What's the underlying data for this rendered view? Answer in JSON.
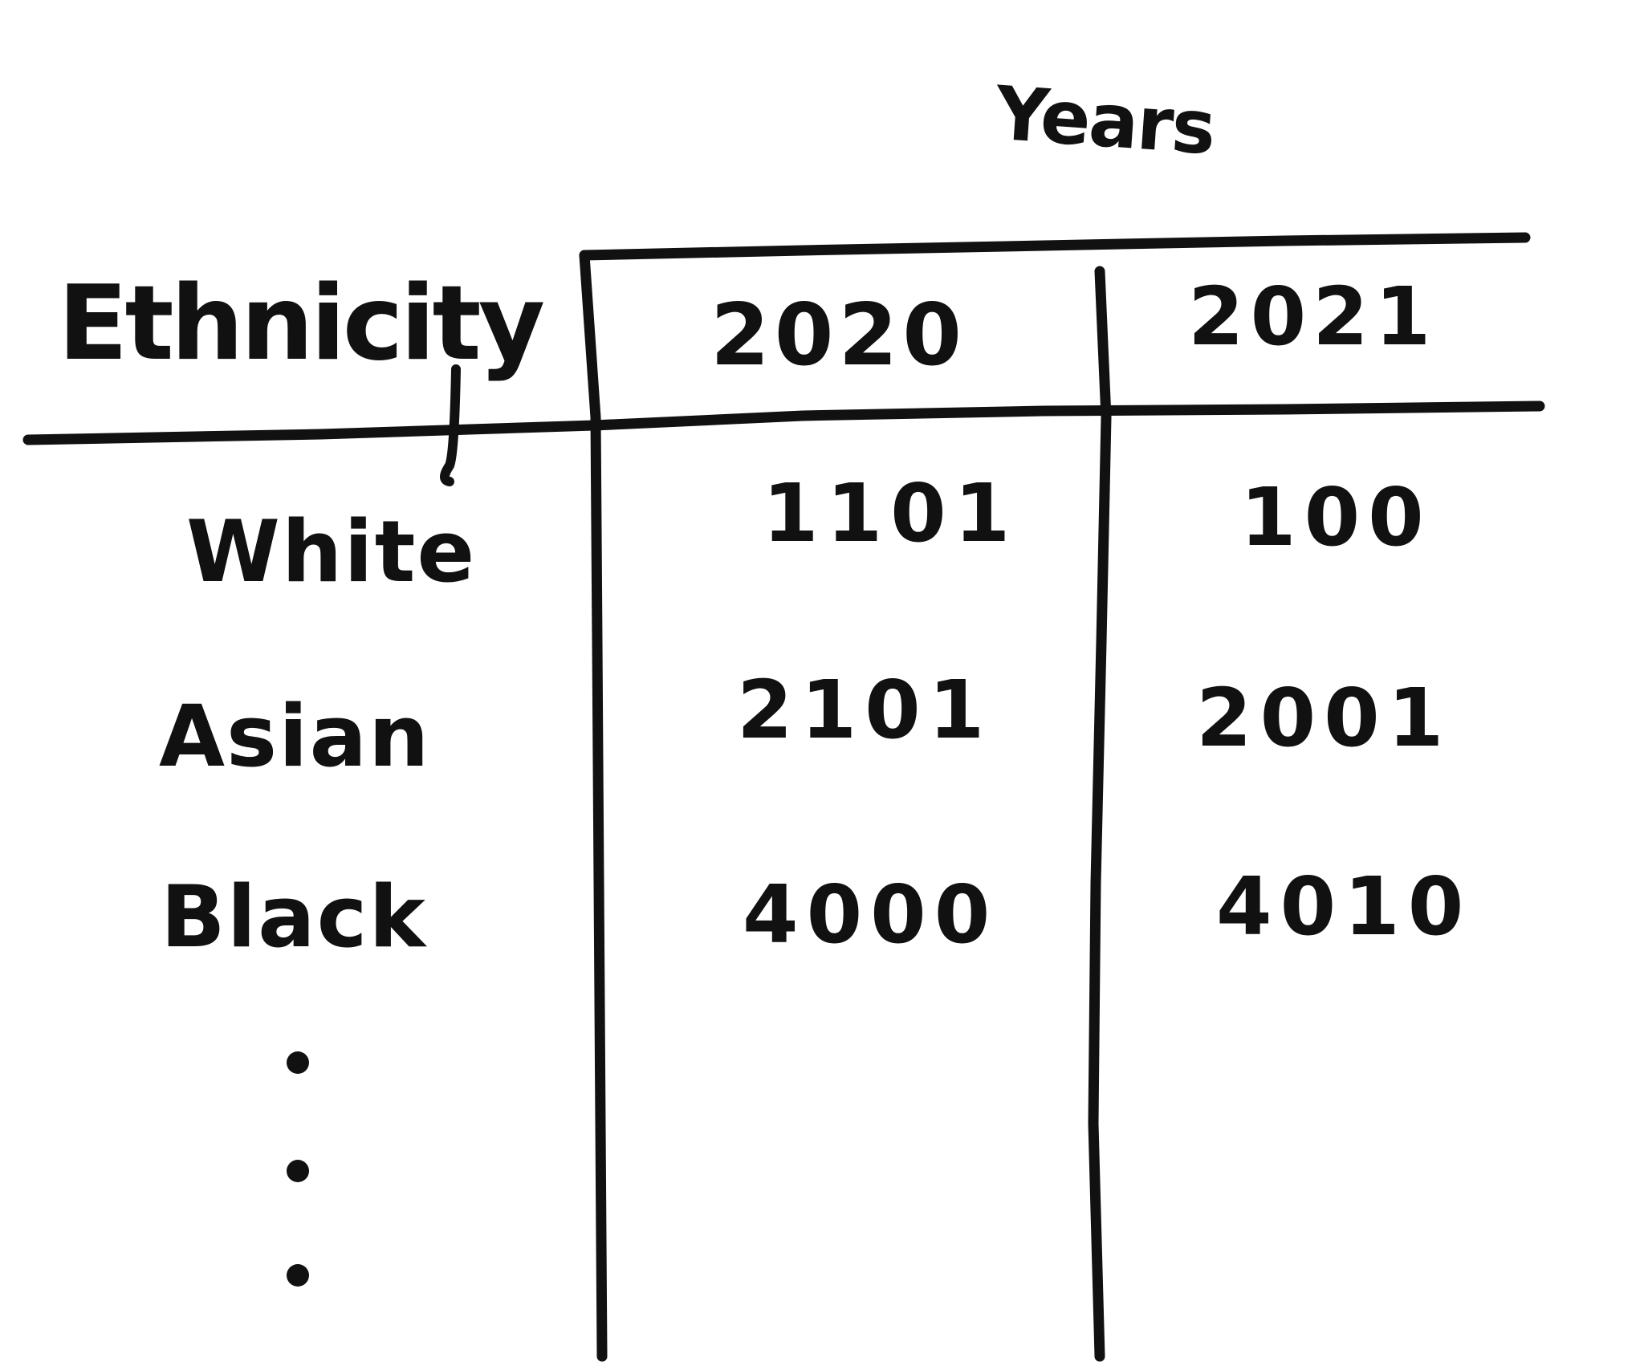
{
  "table": {
    "title": "Years",
    "row_header": "Ethnicity",
    "columns": [
      "2020",
      "2021"
    ],
    "rows": [
      {
        "label": "White",
        "values": [
          "1101",
          "100"
        ]
      },
      {
        "label": "Asian",
        "values": [
          "2101",
          "2001"
        ]
      },
      {
        "label": "Black",
        "values": [
          "4000",
          "4010"
        ]
      }
    ],
    "continuation": "⋮"
  },
  "style": {
    "ink_color": "#111111",
    "background": "#ffffff"
  }
}
